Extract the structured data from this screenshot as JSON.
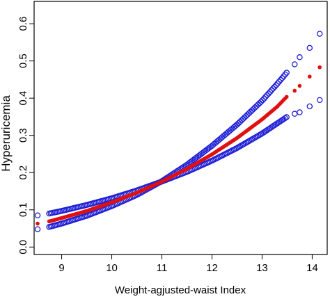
{
  "chart_data": {
    "type": "scatter",
    "title": "",
    "xlabel": "Weight-agjusted-waist Index",
    "ylabel": "Hyperuricemia",
    "xlim": [
      8.45,
      14.3
    ],
    "ylim": [
      -0.02,
      0.66
    ],
    "x_ticks": [
      9,
      10,
      11,
      12,
      13,
      14
    ],
    "y_ticks": [
      0.0,
      0.1,
      0.2,
      0.3,
      0.4,
      0.5,
      0.6
    ],
    "x_tick_labels": [
      "9",
      "10",
      "11",
      "12",
      "13",
      "14"
    ],
    "y_tick_labels": [
      "0.0",
      "0.1",
      "0.2",
      "0.3",
      "0.4",
      "0.5",
      "0.6"
    ],
    "grid": false,
    "legend": "none",
    "series": [
      {
        "marker": "open-circle",
        "color": "#1f1fd6",
        "x": [
          8.52,
          8.75,
          9.0,
          9.5,
          10.0,
          10.5,
          11.0,
          11.5,
          12.0,
          12.5,
          13.0,
          13.3,
          13.5,
          13.65,
          13.75,
          13.95,
          14.15
        ],
        "values": [
          0.085,
          0.09,
          0.097,
          0.113,
          0.131,
          0.152,
          0.176,
          0.202,
          0.232,
          0.266,
          0.305,
          0.332,
          0.35,
          0.358,
          0.362,
          0.378,
          0.395
        ]
      },
      {
        "marker": "open-circle",
        "color": "#1f1fd6",
        "x": [
          8.52,
          8.75,
          9.0,
          9.5,
          10.0,
          10.5,
          11.0,
          11.5,
          12.0,
          12.5,
          13.0,
          13.3,
          13.5,
          13.65,
          13.75,
          13.95,
          14.15
        ],
        "values": [
          0.048,
          0.054,
          0.063,
          0.084,
          0.11,
          0.14,
          0.177,
          0.221,
          0.272,
          0.329,
          0.393,
          0.438,
          0.47,
          0.491,
          0.51,
          0.535,
          0.573
        ]
      },
      {
        "marker": "filled-circle",
        "color": "#e01010",
        "x": [
          8.52,
          8.75,
          9.0,
          9.5,
          10.0,
          10.5,
          11.0,
          11.5,
          12.0,
          12.5,
          13.0,
          13.3,
          13.5,
          13.65,
          13.75,
          13.95,
          14.15
        ],
        "values": [
          0.063,
          0.069,
          0.078,
          0.097,
          0.12,
          0.146,
          0.176,
          0.21,
          0.249,
          0.293,
          0.343,
          0.377,
          0.405,
          0.42,
          0.433,
          0.458,
          0.483
        ]
      }
    ]
  }
}
